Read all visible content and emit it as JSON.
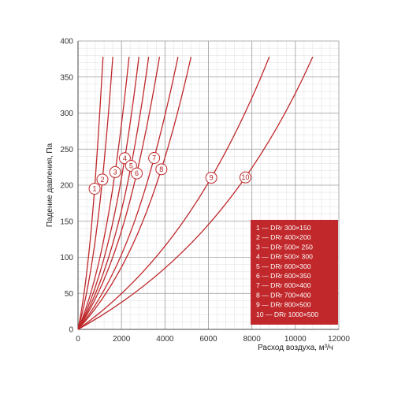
{
  "chart_data": {
    "type": "line",
    "xlabel": "Расход воздуха, м³/ч",
    "ylabel": "Падение давления, Па",
    "xlim": [
      0,
      12000
    ],
    "ylim": [
      0,
      400
    ],
    "x_ticks": [
      "0",
      "2000",
      "4000",
      "6000",
      "8000",
      "10000",
      "12000"
    ],
    "y_ticks": [
      "0",
      "50",
      "100",
      "150",
      "200",
      "250",
      "300",
      "350",
      "400"
    ],
    "grid": true,
    "legend_position": "bottom-right",
    "colors": {
      "curve": "#c0282b",
      "legend_bg": "#c0282b",
      "grid_minor": "#e4e4e4",
      "grid_major": "#9a9a9a"
    },
    "series": [
      {
        "name": "1",
        "x": [
          0,
          500,
          800,
          1150
        ],
        "y": [
          0,
          75,
          190,
          378
        ],
        "tag_y": 195
      },
      {
        "name": "2",
        "x": [
          0,
          700,
          1150,
          1600
        ],
        "y": [
          0,
          75,
          190,
          378
        ],
        "tag_y": 208
      },
      {
        "name": "3",
        "x": [
          0,
          1050,
          1700,
          2350
        ],
        "y": [
          0,
          75,
          190,
          378
        ],
        "tag_y": 218
      },
      {
        "name": "4",
        "x": [
          0,
          1250,
          2050,
          2800
        ],
        "y": [
          0,
          75,
          190,
          378
        ],
        "tag_y": 237
      },
      {
        "name": "5",
        "x": [
          0,
          1450,
          2400,
          3250
        ],
        "y": [
          0,
          75,
          190,
          378
        ],
        "tag_y": 227
      },
      {
        "name": "6",
        "x": [
          0,
          1650,
          2700,
          3750
        ],
        "y": [
          0,
          75,
          190,
          378
        ],
        "tag_y": 216
      },
      {
        "name": "7",
        "x": [
          0,
          2000,
          3300,
          4600
        ],
        "y": [
          0,
          75,
          190,
          378
        ],
        "tag_y": 238
      },
      {
        "name": "8",
        "x": [
          0,
          2300,
          3800,
          5200
        ],
        "y": [
          0,
          75,
          190,
          378
        ],
        "tag_y": 222
      },
      {
        "name": "9",
        "x": [
          0,
          3500,
          6300,
          8800
        ],
        "y": [
          0,
          75,
          190,
          378
        ],
        "tag_y": 210
      },
      {
        "name": "10",
        "x": [
          0,
          4500,
          8000,
          10800
        ],
        "y": [
          0,
          75,
          190,
          378
        ],
        "tag_y": 211
      }
    ],
    "legend_items": [
      "1 — DRr 300×150",
      "2 — DRr 400×200",
      "3 — DRr 500× 250",
      "4 — DRr 500× 300",
      "5 — DRr 600×300",
      "6 — DRr 600×350",
      "7 — DRr 600×400",
      "8 — DRr 700×400",
      "9 — DRr 800×500",
      "10 — DRr 1000×500"
    ]
  }
}
